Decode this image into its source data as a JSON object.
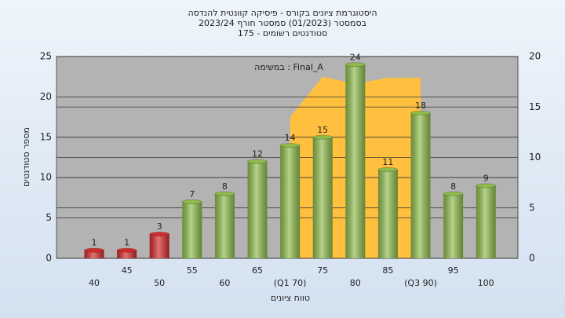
{
  "chart_data": {
    "type": "bar",
    "title": [
      "היסטוגרמת ציונים בקורס - פיסיקה קוונטית להנדסה",
      "בסמסטר  (01/2023)  סמסטר חורף 2023/24",
      "סטודנטים רשומים - 175"
    ],
    "annotation": "במשימה : Final_A",
    "x_label": "טווח ציונים",
    "y_label": "מספר סטודנטים",
    "categories": [
      "40",
      "45",
      "50",
      "55",
      "60",
      "65",
      "(Q1 70)",
      "75",
      "80",
      "85",
      "(Q3 90)",
      "95",
      "100"
    ],
    "values": [
      1,
      1,
      3,
      7,
      8,
      12,
      14,
      15,
      24,
      11,
      18,
      8,
      9
    ],
    "colors": [
      "#d42a2a",
      "#d42a2a",
      "#d42a2a",
      "#8fbc4c",
      "#8fbc4c",
      "#8fbc4c",
      "#8fbc4c",
      "#8fbc4c",
      "#8fbc4c",
      "#8fbc4c",
      "#8fbc4c",
      "#8fbc4c",
      "#8fbc4c"
    ],
    "area": {
      "axis": "y2",
      "color": "#ffc040",
      "values": [
        null,
        null,
        null,
        null,
        null,
        null,
        14,
        18,
        17.3,
        17.9,
        17.9,
        null,
        null
      ]
    },
    "ylim": [
      0,
      25
    ],
    "yticks": [
      0,
      5,
      10,
      15,
      20,
      25
    ],
    "y2lim": [
      0,
      20
    ],
    "y2ticks": [
      0,
      5,
      10,
      15,
      20
    ],
    "grid": true
  }
}
